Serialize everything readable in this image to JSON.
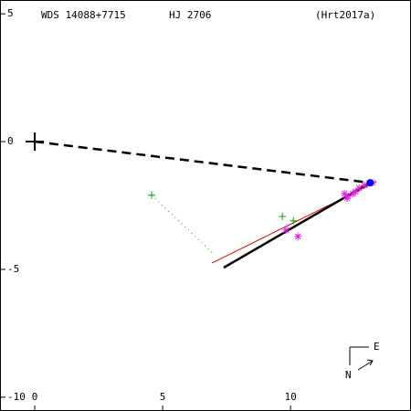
{
  "chart_data": {
    "type": "scatter",
    "title": "WDS 14088+7715",
    "subtitle": "HJ 2706",
    "annotations": [
      "(Hrt2017a)"
    ],
    "compass": [
      "E",
      "N"
    ],
    "xlim": [
      -1.36,
      14.71
    ],
    "ylim": [
      -10.54,
      5.54
    ],
    "xticks": [
      0,
      5,
      10
    ],
    "yticks": [
      5,
      0,
      -5,
      -10
    ],
    "series": [
      {
        "style": "dashed-line",
        "color": "#000000",
        "x": [
          0,
          13.11
        ],
        "values": [
          0,
          -1.61
        ]
      },
      {
        "style": "dotted-line",
        "color": "#00a000",
        "x": [
          4.57,
          7.0
        ],
        "values": [
          -2.1,
          -4.4
        ]
      },
      {
        "style": "line",
        "color": "#e00000",
        "x": [
          6.93,
          13.36
        ],
        "values": [
          -4.75,
          -1.57
        ]
      },
      {
        "style": "thick-line",
        "color": "#000000",
        "x": [
          7.39,
          13.11
        ],
        "values": [
          -4.93,
          -1.61
        ]
      },
      {
        "style": "big-plus",
        "color": "#000000",
        "x": [
          0
        ],
        "values": [
          0
        ]
      },
      {
        "style": "plus",
        "color": "#00a000",
        "x": [
          4.57,
          9.68,
          10.11
        ],
        "values": [
          -2.1,
          -2.93,
          -3.1
        ]
      },
      {
        "style": "asterisk",
        "color": "#e020e0",
        "x": [
          9.82,
          10.29,
          12.11,
          12.25,
          12.43,
          12.54,
          12.68,
          12.89,
          13.21,
          12.21
        ],
        "values": [
          -3.46,
          -3.71,
          -2.04,
          -2.14,
          -2.04,
          -1.96,
          -1.82,
          -1.71,
          -1.61,
          -2.21
        ]
      },
      {
        "style": "dot",
        "color": "#0000ff",
        "x": [
          13.11
        ],
        "values": [
          -1.61
        ]
      }
    ]
  }
}
